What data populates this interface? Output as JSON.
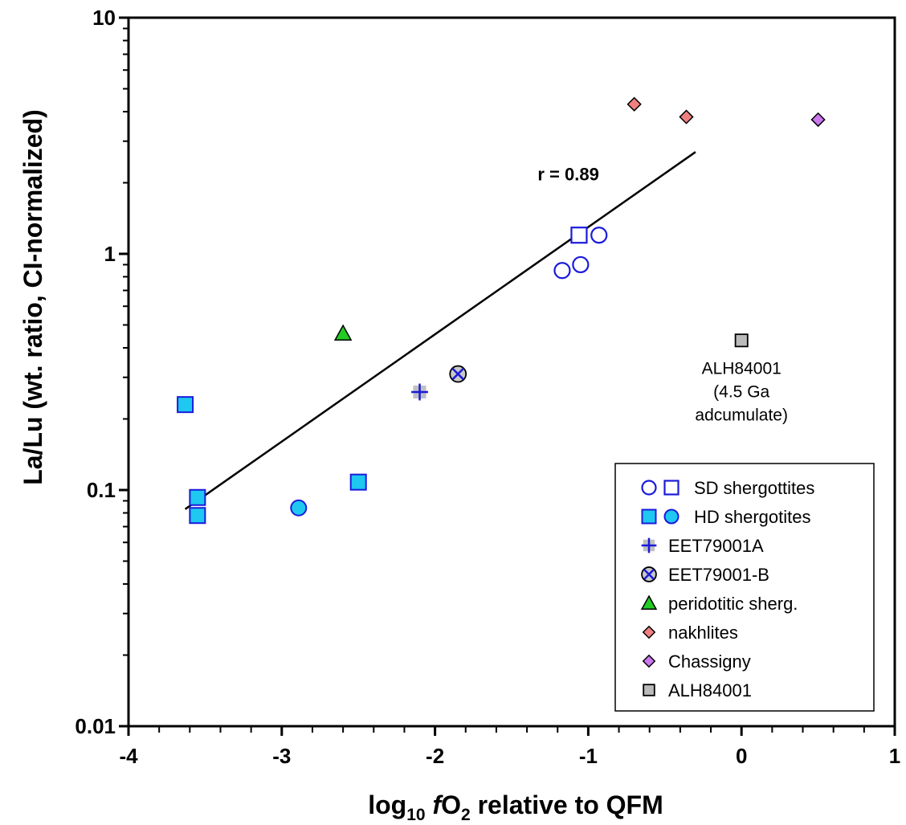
{
  "chart_data": {
    "type": "scatter",
    "title": "",
    "xlabel": {
      "prefix": "log",
      "subscript": "10",
      "italic": "f",
      "species": "O",
      "species_sub": "2",
      "suffix": " relative to QFM"
    },
    "ylabel": "La/Lu (wt. ratio, CI-normalized)",
    "xlim": [
      -4,
      1
    ],
    "ylim": [
      0.01,
      10
    ],
    "yscale": "log",
    "x_ticks": [
      {
        "value": -4,
        "label": "-4"
      },
      {
        "value": -3,
        "label": "-3"
      },
      {
        "value": -2,
        "label": "-2"
      },
      {
        "value": -1,
        "label": "-1"
      },
      {
        "value": 0,
        "label": "0"
      },
      {
        "value": 1,
        "label": "1"
      }
    ],
    "y_ticks": [
      {
        "value": 10,
        "label": "10"
      },
      {
        "value": 1,
        "label": "1"
      },
      {
        "value": 0.1,
        "label": "0.1"
      },
      {
        "value": 0.01,
        "label": "0.01"
      }
    ],
    "grid": false,
    "legend_position": "bottom-right",
    "series": [
      {
        "key": "sd_circle",
        "marker": "circle-open",
        "color": "#1a1adb",
        "points": [
          [
            -1.17,
            0.85
          ],
          [
            -1.05,
            0.9
          ],
          [
            -0.93,
            1.2
          ]
        ]
      },
      {
        "key": "sd_square",
        "marker": "square-open",
        "color": "#1a1adb",
        "points": [
          [
            -1.06,
            1.2
          ]
        ]
      },
      {
        "key": "hd_square",
        "marker": "square-filled",
        "color": "#1ec8f0",
        "points": [
          [
            -3.63,
            0.23
          ],
          [
            -3.55,
            0.093
          ],
          [
            -3.55,
            0.078
          ],
          [
            -2.5,
            0.108
          ]
        ]
      },
      {
        "key": "hd_circle",
        "marker": "circle-filled",
        "color": "#1ec8f0",
        "points": [
          [
            -2.89,
            0.084
          ]
        ]
      },
      {
        "key": "eet_a",
        "marker": "plus-square",
        "color": "#1a1adb",
        "points": [
          [
            -2.1,
            0.26
          ]
        ]
      },
      {
        "key": "eet_b",
        "marker": "x-circle",
        "color": "#1a1adb",
        "points": [
          [
            -1.85,
            0.31
          ]
        ]
      },
      {
        "key": "peridotitic",
        "marker": "triangle",
        "color": "#22cc22",
        "points": [
          [
            -2.6,
            0.46
          ]
        ]
      },
      {
        "key": "nakhlites",
        "marker": "diamond",
        "color": "#f08080",
        "points": [
          [
            -0.7,
            4.3
          ],
          [
            -0.36,
            3.8
          ]
        ]
      },
      {
        "key": "chassigny",
        "marker": "diamond",
        "color": "#cc77ee",
        "points": [
          [
            0.5,
            3.7
          ]
        ]
      },
      {
        "key": "alh84001",
        "marker": "square-gray",
        "color": "#bbbbbb",
        "points": [
          [
            0,
            0.43
          ]
        ]
      }
    ],
    "fit_line": {
      "x": [
        -3.63,
        -0.3
      ],
      "y": [
        0.083,
        2.7
      ]
    },
    "annotations": [
      {
        "key": "r",
        "text": "r = 0.89",
        "x": -1.13,
        "y": 2.05
      },
      {
        "key": "alh_note",
        "lines": [
          "ALH84001",
          "(4.5 Ga",
          "adcumulate)"
        ],
        "x": 0,
        "y": 0.31
      }
    ],
    "legend": [
      {
        "label": "SD shergottites",
        "markers": [
          "circle-open",
          "square-open"
        ],
        "colors": [
          "#1a1adb",
          "#1a1adb"
        ]
      },
      {
        "label": "HD shergotites",
        "markers": [
          "square-filled",
          "circle-filled"
        ],
        "colors": [
          "#1ec8f0",
          "#1ec8f0"
        ]
      },
      {
        "label": "EET79001A",
        "markers": [
          "plus-square"
        ],
        "colors": [
          "#1a1adb"
        ]
      },
      {
        "label": "EET79001-B",
        "markers": [
          "x-circle"
        ],
        "colors": [
          "#1a1adb"
        ]
      },
      {
        "label": "peridotitic sherg.",
        "markers": [
          "triangle"
        ],
        "colors": [
          "#22cc22"
        ]
      },
      {
        "label": "nakhlites",
        "markers": [
          "diamond"
        ],
        "colors": [
          "#f08080"
        ]
      },
      {
        "label": "Chassigny",
        "markers": [
          "diamond"
        ],
        "colors": [
          "#cc77ee"
        ]
      },
      {
        "label": "ALH84001",
        "markers": [
          "square-gray"
        ],
        "colors": [
          "#bbbbbb"
        ]
      }
    ]
  }
}
